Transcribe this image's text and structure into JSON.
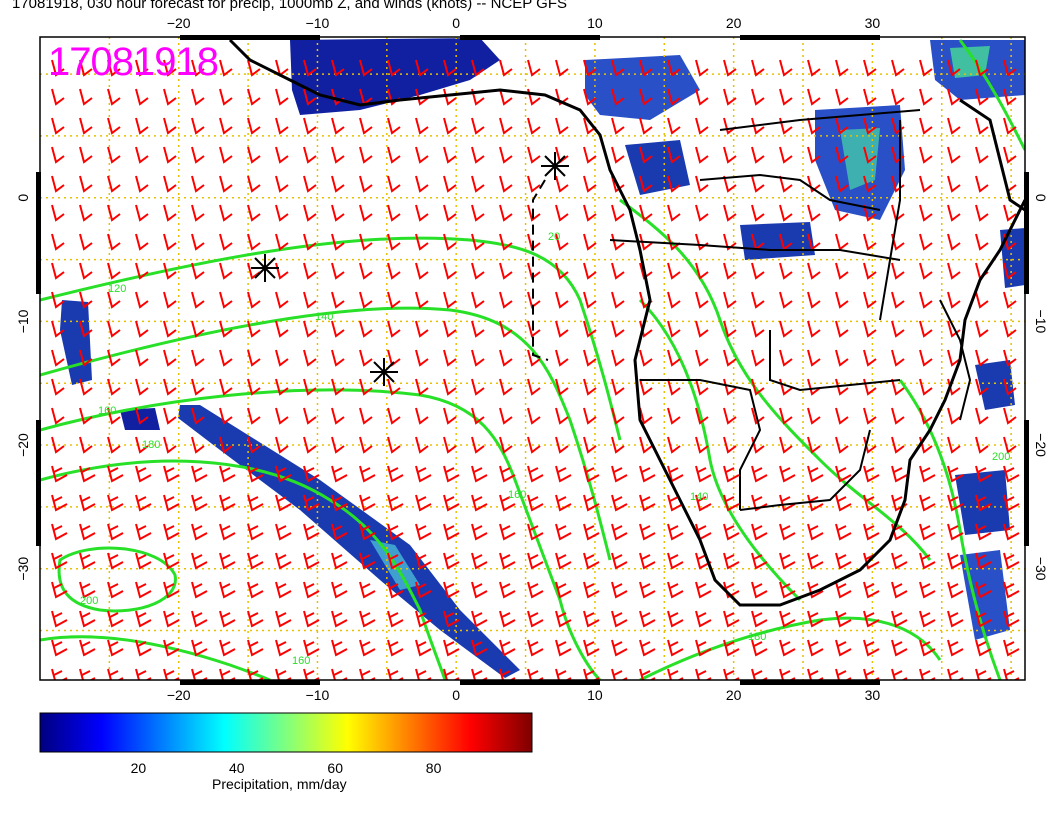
{
  "title": "17081918, 030 hour forecast for precip, 1000mb Z, and winds (knots) -- NCEP GFS",
  "stamp": "17081918",
  "map": {
    "lon_range": [
      -30,
      41
    ],
    "lat_range": [
      -39,
      13
    ],
    "x_ticks": [
      "−20",
      "−10",
      "0",
      "10",
      "20",
      "30"
    ],
    "x_tick_values": [
      -20,
      -10,
      0,
      10,
      20,
      30
    ],
    "y_ticks": [
      "0",
      "−10",
      "−20",
      "−30"
    ],
    "y_tick_values": [
      0,
      -10,
      -20,
      -30
    ],
    "contour_labels": [
      "120",
      "140",
      "160",
      "180",
      "200",
      "20",
      "160",
      "140",
      "180",
      "200",
      "160"
    ],
    "colors": {
      "contour": "#28e028",
      "barb": "#ff0000",
      "grid": "#e8c000",
      "coast": "#000000"
    }
  },
  "colorbar": {
    "ticks": [
      "20",
      "40",
      "60",
      "80"
    ],
    "tick_values": [
      20,
      40,
      60,
      80
    ],
    "range": [
      0,
      100
    ],
    "label": "Precipitation, mm/day",
    "colors": [
      "#00007f",
      "#0000ff",
      "#007fff",
      "#00ffff",
      "#7fff7f",
      "#ffff00",
      "#ff7f00",
      "#ff0000",
      "#7f0000"
    ]
  }
}
